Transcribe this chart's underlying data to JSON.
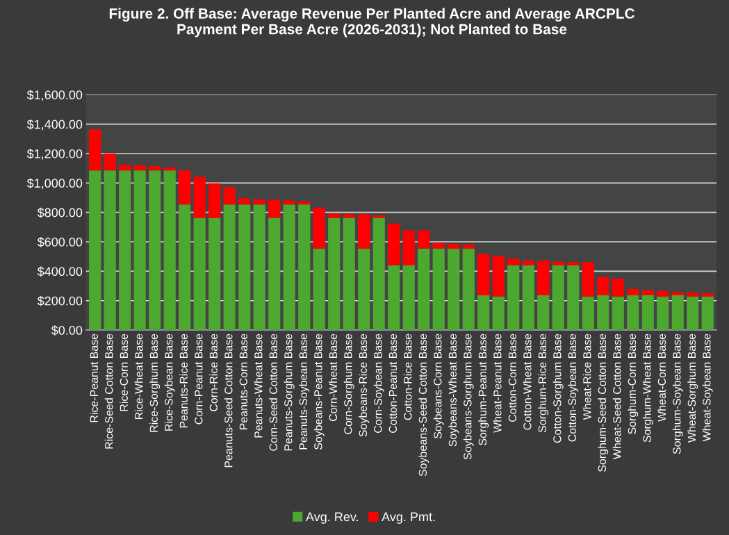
{
  "chart_data": {
    "type": "bar",
    "stacked": true,
    "title": "Figure 2. Off Base: Average Revenue Per Planted Acre and Average ARCPLC Payment Per Base Acre (2026-2031); Not Planted to Base",
    "categories": [
      "Rice-Peanut Base",
      "Rice-Seed Cotton Base",
      "Rice-Corn Base",
      "Rice-Wheat Base",
      "Rice-Sorghum Base",
      "Rice-Soybean Base",
      "Peanuts-Rice Base",
      "Corn-Peanut Base",
      "Corn-Rice Base",
      "Peanuts-Seed Cotton Base",
      "Peanuts-Corn Base",
      "Peanuts-Wheat Base",
      "Corn-Seed Cotton Base",
      "Peanuts-Sorghum Base",
      "Peanuts-Soybean Base",
      "Soybeans-Peanut Base",
      "Corn-Wheat Base",
      "Corn-Sorghum Base",
      "Soybeans-Rice Base",
      "Corn-Soybean Base",
      "Cotton-Peanut Base",
      "Cotton-Rice Base",
      "Soybeans-Seed Cotton Base",
      "Soybeans-Corn Base",
      "Soybeans-Wheat Base",
      "Soybeans-Sorghum Base",
      "Sorghum-Peanut Base",
      "Wheat-Peanut Base",
      "Cotton-Corn Base",
      "Cotton-Wheat Base",
      "Sorghum-Rice Base",
      "Cotton-Sorghum Base",
      "Cotton-Soybean Base",
      "Wheat-Rice Base",
      "Sorghum-Seed Cotton Base",
      "Wheat-Seed Cotton Base",
      "Sorghum-Corn Base",
      "Sorghum-Wheat Base",
      "Wheat-Corn Base",
      "Sorghum-Soybean Base",
      "Wheat-Sorghum Base",
      "Wheat-Soybean Base"
    ],
    "series": [
      {
        "name": "Avg. Rev.",
        "color": "#4ca82f",
        "values": [
          1086,
          1086,
          1086,
          1086,
          1086,
          1086,
          854,
          763,
          763,
          854,
          854,
          854,
          763,
          854,
          854,
          554,
          763,
          763,
          554,
          763,
          441,
          441,
          554,
          554,
          554,
          554,
          237,
          228,
          441,
          441,
          237,
          441,
          441,
          228,
          237,
          228,
          237,
          237,
          228,
          237,
          228,
          228
        ]
      },
      {
        "name": "Avg. Pmt.",
        "color": "#ff0000",
        "values": [
          278,
          114,
          38,
          33,
          28,
          18,
          232,
          279,
          235,
          118,
          41,
          33,
          122,
          28,
          20,
          279,
          29,
          24,
          234,
          17,
          283,
          236,
          123,
          38,
          32,
          27,
          280,
          278,
          45,
          32,
          236,
          25,
          21,
          234,
          124,
          121,
          42,
          34,
          38,
          22,
          27,
          22
        ]
      }
    ],
    "ylim": [
      0,
      1600
    ],
    "yticks": [
      {
        "value": 0,
        "label": "$0.00"
      },
      {
        "value": 200,
        "label": "$200.00"
      },
      {
        "value": 400,
        "label": "$400.00"
      },
      {
        "value": 600,
        "label": "$600.00"
      },
      {
        "value": 800,
        "label": "$800.00"
      },
      {
        "value": 1000,
        "label": "$1,000.00"
      },
      {
        "value": 1200,
        "label": "$1,200.00"
      },
      {
        "value": 1400,
        "label": "$1,400.00"
      },
      {
        "value": 1600,
        "label": "$1,600.00"
      }
    ],
    "grid": "y",
    "legend": "bottom"
  }
}
